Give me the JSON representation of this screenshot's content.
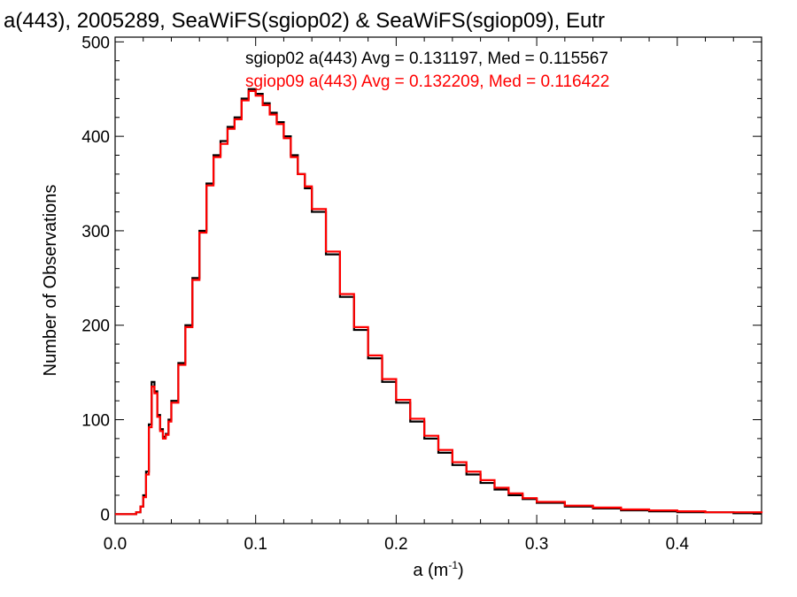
{
  "chart_data": {
    "type": "histogram",
    "title": "a(443), 2005289, SeaWiFS(sgiop02) & SeaWiFS(sgiop09), Eutr",
    "xlabel_main": "a (m",
    "xlabel_sup": "-1",
    "xlabel_end": ")",
    "ylabel": "Number of Observations",
    "xlim": [
      0,
      0.46
    ],
    "ylim": [
      -10,
      505
    ],
    "xticks": [
      0.0,
      0.1,
      0.2,
      0.3,
      0.4
    ],
    "xtick_labels": [
      "0.0",
      "0.1",
      "0.2",
      "0.3",
      "0.4"
    ],
    "yticks": [
      0,
      100,
      200,
      300,
      400,
      500
    ],
    "ytick_labels": [
      "0",
      "100",
      "200",
      "300",
      "400",
      "500"
    ],
    "grid": false,
    "legend_placement": "top-right",
    "series": [
      {
        "name": "sgiop02",
        "annotation": "sgiop02 a(443) Avg = 0.131197, Med = 0.115567",
        "color": "#000000",
        "x": [
          0.0,
          0.01,
          0.015,
          0.018,
          0.02,
          0.022,
          0.024,
          0.026,
          0.028,
          0.03,
          0.032,
          0.034,
          0.036,
          0.038,
          0.04,
          0.045,
          0.05,
          0.055,
          0.06,
          0.065,
          0.07,
          0.075,
          0.08,
          0.085,
          0.09,
          0.095,
          0.1,
          0.105,
          0.11,
          0.115,
          0.12,
          0.125,
          0.13,
          0.135,
          0.14,
          0.15,
          0.16,
          0.17,
          0.18,
          0.19,
          0.2,
          0.21,
          0.22,
          0.23,
          0.24,
          0.25,
          0.26,
          0.27,
          0.28,
          0.29,
          0.3,
          0.32,
          0.34,
          0.36,
          0.38,
          0.4,
          0.42,
          0.44,
          0.46
        ],
        "y": [
          0,
          0,
          2,
          8,
          20,
          45,
          95,
          140,
          130,
          105,
          90,
          82,
          85,
          100,
          120,
          160,
          200,
          250,
          300,
          350,
          380,
          395,
          410,
          420,
          440,
          450,
          445,
          435,
          425,
          415,
          400,
          380,
          360,
          345,
          320,
          275,
          230,
          195,
          165,
          140,
          118,
          98,
          80,
          65,
          52,
          42,
          33,
          26,
          20,
          16,
          12,
          8,
          6,
          4,
          3,
          2,
          2,
          1,
          1
        ]
      },
      {
        "name": "sgiop09",
        "annotation": "sgiop09 a(443) Avg = 0.132209, Med = 0.116422",
        "color": "#ff0000",
        "x": [
          0.0,
          0.01,
          0.015,
          0.018,
          0.02,
          0.022,
          0.024,
          0.026,
          0.028,
          0.03,
          0.032,
          0.034,
          0.036,
          0.038,
          0.04,
          0.045,
          0.05,
          0.055,
          0.06,
          0.065,
          0.07,
          0.075,
          0.08,
          0.085,
          0.09,
          0.095,
          0.1,
          0.105,
          0.11,
          0.115,
          0.12,
          0.125,
          0.13,
          0.135,
          0.14,
          0.15,
          0.16,
          0.17,
          0.18,
          0.19,
          0.2,
          0.21,
          0.22,
          0.23,
          0.24,
          0.25,
          0.26,
          0.27,
          0.28,
          0.29,
          0.3,
          0.32,
          0.34,
          0.36,
          0.38,
          0.4,
          0.42,
          0.44,
          0.46
        ],
        "y": [
          0,
          0,
          2,
          8,
          18,
          42,
          92,
          135,
          128,
          103,
          88,
          80,
          84,
          98,
          118,
          158,
          198,
          248,
          298,
          348,
          378,
          392,
          408,
          418,
          438,
          448,
          443,
          433,
          423,
          413,
          398,
          378,
          360,
          347,
          323,
          278,
          233,
          198,
          168,
          143,
          121,
          101,
          83,
          68,
          55,
          45,
          36,
          28,
          22,
          17,
          13,
          9,
          7,
          5,
          4,
          3,
          2,
          2,
          1
        ]
      }
    ]
  }
}
